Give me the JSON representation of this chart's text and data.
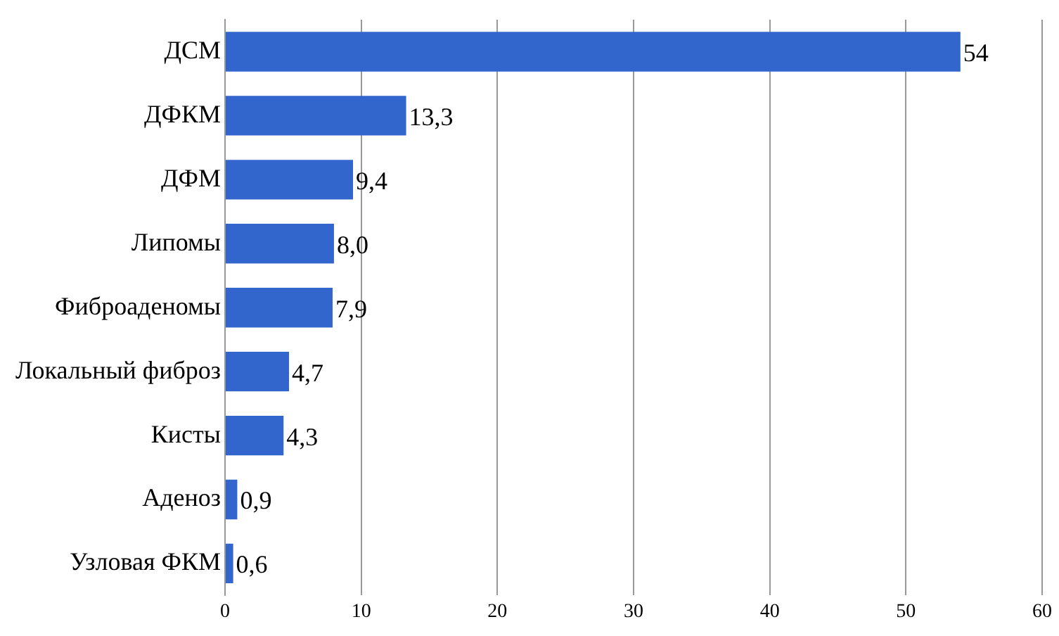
{
  "chart_data": {
    "type": "bar",
    "orientation": "horizontal",
    "categories": [
      "ДСМ",
      "ДФКМ",
      "ДФМ",
      "Липомы",
      "Фиброаденомы",
      "Локальный фиброз",
      "Кисты",
      "Аденоз",
      "Узловая ФКМ"
    ],
    "values": [
      54,
      13.3,
      9.4,
      8.0,
      7.9,
      4.7,
      4.3,
      0.9,
      0.6
    ],
    "value_labels": [
      "54",
      "13,3",
      "9,4",
      "8,0",
      "7,9",
      "4,7",
      "4,3",
      "0,9",
      "0,6"
    ],
    "color": "#3366cc",
    "xlim": [
      0,
      60
    ],
    "xticks": [
      0,
      10,
      20,
      30,
      40,
      50,
      60
    ],
    "grid": "x",
    "legend": false
  }
}
